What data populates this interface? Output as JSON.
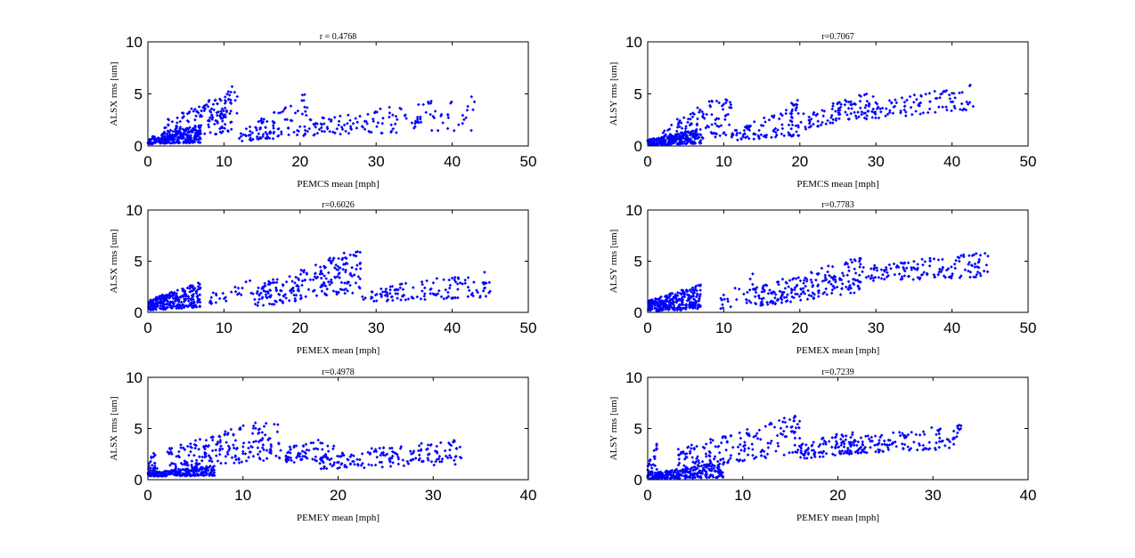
{
  "chart_data": [
    {
      "type": "scatter",
      "title": "r = 0.4768",
      "xlabel": "PEMCS mean [mph]",
      "ylabel": "ALSX rms [um]",
      "xlim": [
        0,
        50
      ],
      "ylim": [
        0,
        10
      ],
      "xticks": [
        "0",
        "10",
        "20",
        "30",
        "40",
        "50"
      ],
      "yticks": [
        "0",
        "5",
        "10"
      ],
      "color": "#0000ff",
      "n_points": 650,
      "seed": 11,
      "clusters": [
        {
          "xr": [
            0,
            7
          ],
          "ymin": [
            0.2,
            0.3
          ],
          "yspan": [
            0.6,
            1.8
          ],
          "share": 0.38
        },
        {
          "xr": [
            2,
            11
          ],
          "ymin": [
            0.4,
            1.2
          ],
          "yspan": [
            2.0,
            4.2
          ],
          "share": 0.2
        },
        {
          "xr": [
            8,
            12
          ],
          "ymin": [
            2.0,
            3.0
          ],
          "yspan": [
            1.5,
            3.5
          ],
          "share": 0.05
        },
        {
          "xr": [
            12,
            21
          ],
          "ymin": [
            0.4,
            1.0
          ],
          "yspan": [
            1.0,
            4.2
          ],
          "share": 0.16
        },
        {
          "xr": [
            21,
            43
          ],
          "ymin": [
            1.0,
            1.5
          ],
          "yspan": [
            1.5,
            3.5
          ],
          "share": 0.21
        }
      ]
    },
    {
      "type": "scatter",
      "title": "r=0.7067",
      "xlabel": "PEMCS mean [mph]",
      "ylabel": "ALSY rms [um]",
      "xlim": [
        0,
        50
      ],
      "ylim": [
        0,
        10
      ],
      "xticks": [
        "0",
        "10",
        "20",
        "30",
        "40",
        "50"
      ],
      "yticks": [
        "0",
        "5",
        "10"
      ],
      "color": "#0000ff",
      "n_points": 650,
      "seed": 23,
      "clusters": [
        {
          "xr": [
            0,
            7
          ],
          "ymin": [
            0.1,
            0.2
          ],
          "yspan": [
            0.5,
            1.5
          ],
          "share": 0.36
        },
        {
          "xr": [
            2,
            11
          ],
          "ymin": [
            0.3,
            1.0
          ],
          "yspan": [
            1.5,
            4.5
          ],
          "share": 0.18
        },
        {
          "xr": [
            11,
            20
          ],
          "ymin": [
            0.5,
            1.0
          ],
          "yspan": [
            1.0,
            3.5
          ],
          "share": 0.16
        },
        {
          "xr": [
            20,
            30
          ],
          "ymin": [
            1.5,
            3.0
          ],
          "yspan": [
            1.5,
            2.5
          ],
          "share": 0.14
        },
        {
          "xr": [
            28,
            43
          ],
          "ymin": [
            2.5,
            3.5
          ],
          "yspan": [
            1.5,
            2.5
          ],
          "share": 0.16
        }
      ]
    },
    {
      "type": "scatter",
      "title": "r=0.6026",
      "xlabel": "PEMEX mean [mph]",
      "ylabel": "ALSX rms [um]",
      "xlim": [
        0,
        50
      ],
      "ylim": [
        0,
        10
      ],
      "xticks": [
        "0",
        "10",
        "20",
        "30",
        "40",
        "50"
      ],
      "yticks": [
        "0",
        "5",
        "10"
      ],
      "color": "#0000ff",
      "n_points": 650,
      "seed": 37,
      "clusters": [
        {
          "xr": [
            0,
            7
          ],
          "ymin": [
            0.2,
            0.5
          ],
          "yspan": [
            1.0,
            2.5
          ],
          "share": 0.42
        },
        {
          "xr": [
            8,
            14
          ],
          "ymin": [
            0.8,
            1.5
          ],
          "yspan": [
            1.0,
            2.0
          ],
          "share": 0.04
        },
        {
          "xr": [
            14,
            28
          ],
          "ymin": [
            0.5,
            2.0
          ],
          "yspan": [
            2.0,
            4.5
          ],
          "share": 0.34
        },
        {
          "xr": [
            28,
            45
          ],
          "ymin": [
            1.0,
            1.5
          ],
          "yspan": [
            1.0,
            3.0
          ],
          "share": 0.2
        }
      ]
    },
    {
      "type": "scatter",
      "title": "r=0.7783",
      "xlabel": "PEMEX mean [mph]",
      "ylabel": "ALSY rms [um]",
      "xlim": [
        0,
        50
      ],
      "ylim": [
        0,
        10
      ],
      "xticks": [
        "0",
        "10",
        "20",
        "30",
        "40",
        "50"
      ],
      "yticks": [
        "0",
        "5",
        "10"
      ],
      "color": "#0000ff",
      "n_points": 650,
      "seed": 41,
      "clusters": [
        {
          "xr": [
            0,
            7
          ],
          "ymin": [
            0.1,
            0.3
          ],
          "yspan": [
            1.0,
            2.5
          ],
          "share": 0.42
        },
        {
          "xr": [
            9,
            14
          ],
          "ymin": [
            0.2,
            1.0
          ],
          "yspan": [
            1.0,
            3.0
          ],
          "share": 0.04
        },
        {
          "xr": [
            14,
            28
          ],
          "ymin": [
            0.5,
            2.0
          ],
          "yspan": [
            2.0,
            3.5
          ],
          "share": 0.32
        },
        {
          "xr": [
            28,
            45
          ],
          "ymin": [
            3.0,
            3.5
          ],
          "yspan": [
            1.5,
            2.5
          ],
          "share": 0.22
        }
      ]
    },
    {
      "type": "scatter",
      "title": "r=0.4978",
      "xlabel": "PEMEY mean [mph]",
      "ylabel": "ALSX rms [um]",
      "xlim": [
        0,
        40
      ],
      "ylim": [
        0,
        10
      ],
      "xticks": [
        "0",
        "10",
        "20",
        "30",
        "40"
      ],
      "yticks": [
        "0",
        "5",
        "10"
      ],
      "color": "#0000ff",
      "n_points": 700,
      "seed": 53,
      "clusters": [
        {
          "xr": [
            0,
            7
          ],
          "ymin": [
            0.3,
            0.4
          ],
          "yspan": [
            0.4,
            1.0
          ],
          "share": 0.35
        },
        {
          "xr": [
            0,
            1
          ],
          "ymin": [
            0.5,
            1.0
          ],
          "yspan": [
            1.0,
            2.8
          ],
          "share": 0.04
        },
        {
          "xr": [
            2,
            14
          ],
          "ymin": [
            1.0,
            2.0
          ],
          "yspan": [
            2.0,
            4.5
          ],
          "share": 0.28
        },
        {
          "xr": [
            14,
            20
          ],
          "ymin": [
            1.5,
            2.0
          ],
          "yspan": [
            1.5,
            2.5
          ],
          "share": 0.1
        },
        {
          "xr": [
            18,
            33
          ],
          "ymin": [
            1.0,
            1.5
          ],
          "yspan": [
            1.5,
            2.5
          ],
          "share": 0.23
        }
      ]
    },
    {
      "type": "scatter",
      "title": "r=0.7239",
      "xlabel": "PEMEY mean [mph]",
      "ylabel": "ALSY rms [um]",
      "xlim": [
        0,
        40
      ],
      "ylim": [
        0,
        10
      ],
      "xticks": [
        "0",
        "10",
        "20",
        "30",
        "40"
      ],
      "yticks": [
        "0",
        "5",
        "10"
      ],
      "color": "#0000ff",
      "n_points": 700,
      "seed": 67,
      "clusters": [
        {
          "xr": [
            0,
            8
          ],
          "ymin": [
            0.1,
            0.2
          ],
          "yspan": [
            0.5,
            1.5
          ],
          "share": 0.36
        },
        {
          "xr": [
            0,
            1
          ],
          "ymin": [
            0.3,
            1.0
          ],
          "yspan": [
            1.0,
            3.0
          ],
          "share": 0.04
        },
        {
          "xr": [
            3,
            16
          ],
          "ymin": [
            1.0,
            2.5
          ],
          "yspan": [
            2.0,
            4.0
          ],
          "share": 0.26
        },
        {
          "xr": [
            16,
            22
          ],
          "ymin": [
            2.0,
            2.5
          ],
          "yspan": [
            1.5,
            2.5
          ],
          "share": 0.12
        },
        {
          "xr": [
            20,
            33
          ],
          "ymin": [
            2.5,
            3.0
          ],
          "yspan": [
            1.5,
            2.5
          ],
          "share": 0.22
        }
      ]
    }
  ]
}
